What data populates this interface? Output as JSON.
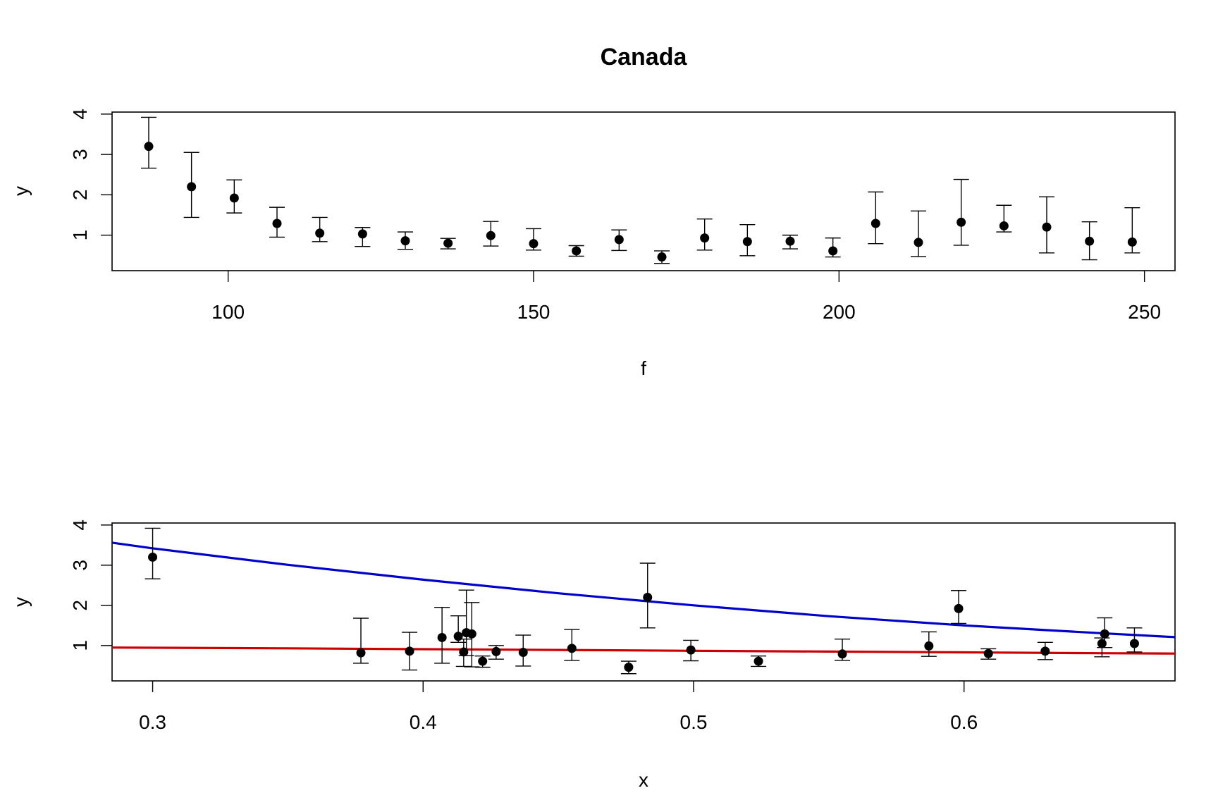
{
  "chart_data": [
    {
      "type": "scatter",
      "title": "Canada",
      "xlabel": "f",
      "ylabel": "y",
      "xlim": [
        81,
        255
      ],
      "ylim": [
        0.12,
        4.05
      ],
      "xticks": [
        100,
        150,
        200,
        250
      ],
      "yticks": [
        1,
        2,
        3,
        4
      ],
      "grid": false,
      "series": [
        {
          "x": [
            87,
            94,
            101,
            108,
            115,
            122,
            129,
            136,
            143,
            150,
            157,
            164,
            171,
            178,
            185,
            192,
            199,
            206,
            213,
            220,
            227,
            234,
            241,
            248
          ],
          "y": [
            3.2,
            2.2,
            1.92,
            1.29,
            1.05,
            1.03,
            0.86,
            0.8,
            0.99,
            0.79,
            0.61,
            0.89,
            0.46,
            0.93,
            0.84,
            0.85,
            0.61,
            1.29,
            0.82,
            1.32,
            1.23,
            1.2,
            0.85,
            0.83
          ],
          "ylow": [
            2.66,
            1.44,
            1.55,
            0.95,
            0.84,
            0.72,
            0.65,
            0.66,
            0.73,
            0.63,
            0.48,
            0.62,
            0.3,
            0.63,
            0.49,
            0.66,
            0.46,
            0.79,
            0.47,
            0.75,
            1.08,
            0.56,
            0.39,
            0.56
          ],
          "yhigh": [
            3.92,
            3.05,
            2.37,
            1.69,
            1.44,
            1.19,
            1.08,
            0.92,
            1.34,
            1.16,
            0.74,
            1.13,
            0.61,
            1.4,
            1.26,
            1.0,
            0.93,
            2.07,
            1.6,
            2.38,
            1.74,
            1.95,
            1.33,
            1.68
          ]
        }
      ]
    },
    {
      "type": "scatter",
      "title": "",
      "xlabel": "x",
      "ylabel": "y",
      "xlim": [
        0.285,
        0.678
      ],
      "ylim": [
        0.12,
        4.05
      ],
      "xticks": [
        0.3,
        0.4,
        0.5,
        0.6
      ],
      "yticks": [
        1,
        2,
        3,
        4
      ],
      "grid": false,
      "series": [
        {
          "x": [
            0.3,
            0.377,
            0.395,
            0.407,
            0.413,
            0.415,
            0.416,
            0.418,
            0.422,
            0.427,
            0.437,
            0.455,
            0.476,
            0.483,
            0.499,
            0.524,
            0.555,
            0.587,
            0.598,
            0.609,
            0.63,
            0.651,
            0.652,
            0.663
          ],
          "y": [
            3.2,
            0.82,
            0.86,
            1.2,
            1.23,
            0.84,
            1.32,
            1.29,
            0.61,
            0.85,
            0.83,
            0.93,
            0.46,
            2.2,
            0.89,
            0.61,
            0.79,
            0.99,
            1.92,
            0.8,
            0.86,
            1.05,
            1.29,
            1.05
          ],
          "ylow": [
            2.66,
            0.56,
            0.39,
            0.56,
            1.08,
            0.48,
            0.75,
            0.47,
            0.46,
            0.66,
            0.49,
            0.63,
            0.3,
            1.44,
            0.62,
            0.48,
            0.63,
            0.73,
            1.55,
            0.66,
            0.65,
            0.72,
            0.95,
            0.84
          ],
          "yhigh": [
            3.92,
            1.68,
            1.33,
            1.95,
            1.74,
            1.16,
            2.38,
            2.07,
            0.74,
            1.0,
            1.26,
            1.4,
            0.61,
            3.05,
            1.13,
            0.74,
            1.16,
            1.34,
            2.37,
            0.92,
            1.08,
            1.19,
            1.69,
            1.44
          ]
        },
        {
          "color": "#0000cc",
          "kind": "line",
          "x": [
            0.285,
            0.3,
            0.35,
            0.4,
            0.45,
            0.5,
            0.55,
            0.6,
            0.65,
            0.678
          ],
          "y": [
            3.56,
            3.42,
            3.01,
            2.64,
            2.3,
            2.0,
            1.73,
            1.5,
            1.31,
            1.21
          ]
        },
        {
          "color": "#cc0000",
          "kind": "line",
          "x": [
            0.285,
            0.35,
            0.4,
            0.45,
            0.5,
            0.55,
            0.6,
            0.65,
            0.678
          ],
          "y": [
            0.95,
            0.93,
            0.91,
            0.89,
            0.87,
            0.85,
            0.83,
            0.81,
            0.8
          ]
        }
      ]
    }
  ]
}
